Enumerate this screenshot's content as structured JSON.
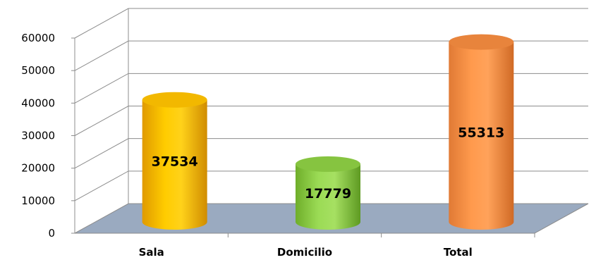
{
  "chart_data": {
    "type": "bar",
    "style": "3d-cylinder",
    "categories": [
      "Sala",
      "Domicilio",
      "Total"
    ],
    "values": [
      37534,
      17779,
      55313
    ],
    "data_labels": [
      "37534",
      "17779",
      "55313"
    ],
    "ylim": [
      0,
      60000
    ],
    "yticks": [
      0,
      10000,
      20000,
      30000,
      40000,
      50000,
      60000
    ],
    "ytick_labels": [
      "0",
      "10000",
      "20000",
      "30000",
      "40000",
      "50000",
      "60000"
    ],
    "grid": true,
    "legend": "none",
    "colors": [
      "#FFC000",
      "#92D050",
      "#F79646"
    ],
    "floor_color": "#9AAAC0"
  }
}
